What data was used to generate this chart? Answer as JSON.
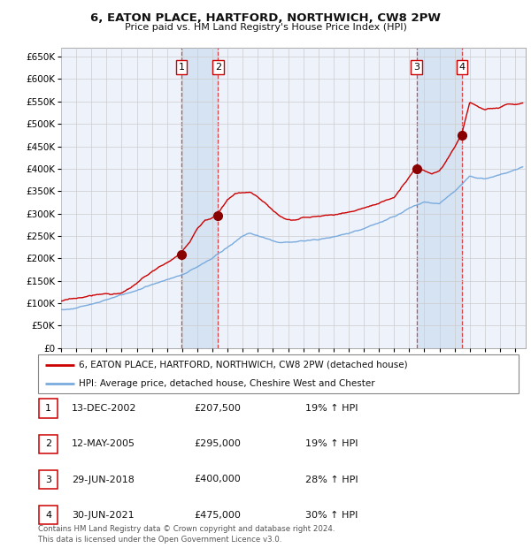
{
  "title1": "6, EATON PLACE, HARTFORD, NORTHWICH, CW8 2PW",
  "title2": "Price paid vs. HM Land Registry's House Price Index (HPI)",
  "ylim": [
    0,
    670000
  ],
  "xlim_start": 1995.0,
  "xlim_end": 2025.7,
  "yticks": [
    0,
    50000,
    100000,
    150000,
    200000,
    250000,
    300000,
    350000,
    400000,
    450000,
    500000,
    550000,
    600000,
    650000
  ],
  "ytick_labels": [
    "£0",
    "£50K",
    "£100K",
    "£150K",
    "£200K",
    "£250K",
    "£300K",
    "£350K",
    "£400K",
    "£450K",
    "£500K",
    "£550K",
    "£600K",
    "£650K"
  ],
  "xticks": [
    1995,
    1996,
    1997,
    1998,
    1999,
    2000,
    2001,
    2002,
    2003,
    2004,
    2005,
    2006,
    2007,
    2008,
    2009,
    2010,
    2011,
    2012,
    2013,
    2014,
    2015,
    2016,
    2017,
    2018,
    2019,
    2020,
    2021,
    2022,
    2023,
    2024,
    2025
  ],
  "background_color": "#ffffff",
  "grid_color": "#cccccc",
  "plot_bg_color": "#eef2fb",
  "red_line_color": "#cc0000",
  "blue_line_color": "#7aabde",
  "dashed_line_color": "#dd3333",
  "shade_color": "#ccddf0",
  "sale_points": [
    {
      "label": 1,
      "date": 2002.95,
      "price": 207500
    },
    {
      "label": 2,
      "date": 2005.37,
      "price": 295000
    },
    {
      "label": 3,
      "date": 2018.49,
      "price": 400000
    },
    {
      "label": 4,
      "date": 2021.49,
      "price": 475000
    }
  ],
  "legend_line1": "6, EATON PLACE, HARTFORD, NORTHWICH, CW8 2PW (detached house)",
  "legend_line2": "HPI: Average price, detached house, Cheshire West and Chester",
  "table_rows": [
    {
      "num": "1",
      "date": "13-DEC-2002",
      "price": "£207,500",
      "hpi": "19% ↑ HPI"
    },
    {
      "num": "2",
      "date": "12-MAY-2005",
      "price": "£295,000",
      "hpi": "19% ↑ HPI"
    },
    {
      "num": "3",
      "date": "29-JUN-2018",
      "price": "£400,000",
      "hpi": "28% ↑ HPI"
    },
    {
      "num": "4",
      "date": "30-JUN-2021",
      "price": "£475,000",
      "hpi": "30% ↑ HPI"
    }
  ],
  "footer": "Contains HM Land Registry data © Crown copyright and database right 2024.\nThis data is licensed under the Open Government Licence v3.0."
}
